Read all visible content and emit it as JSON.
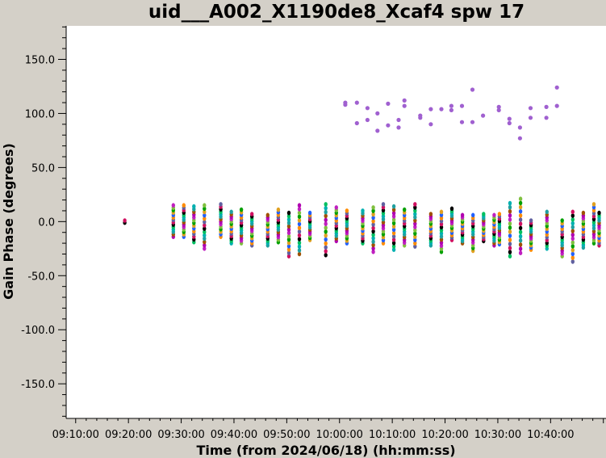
{
  "chart_data": {
    "type": "scatter",
    "title": "uid___A002_X1190de8_Xcaf4 spw 17",
    "xlabel": "Time (from 2024/06/18) (hh:mm:ss)",
    "ylabel": "Gain Phase (degrees)",
    "x_unit": "minutes after 09:00:00",
    "xlim": [
      8.2,
      110.5
    ],
    "ylim": [
      -182,
      181
    ],
    "x_ticks": [
      "09:10:00",
      "09:20:00",
      "09:30:00",
      "09:40:00",
      "09:50:00",
      "10:00:00",
      "10:10:00",
      "10:20:00",
      "10:30:00",
      "10:40:00"
    ],
    "y_ticks": [
      "150.0",
      "100.0",
      "50.0",
      "0.0",
      "-50.0",
      "-100.0",
      "-150.0"
    ],
    "grid": false,
    "legend": "none",
    "series_colors": [
      "#000000",
      "#ff8c00",
      "#00a000",
      "#b000b0",
      "#00b0b0",
      "#d01060",
      "#2060ff",
      "#80c040",
      "#a05000",
      "#00c060",
      "#6060a0",
      "#e0a020",
      "#c020c0",
      "#20a0a0"
    ],
    "outlier_color": "#a060d0",
    "scans": [
      {
        "t": 19.3,
        "lo": -1,
        "hi": 1,
        "n": 2
      },
      {
        "t": 28.5,
        "lo": -14,
        "hi": 15,
        "n": 14
      },
      {
        "t": 30.5,
        "lo": -14,
        "hi": 15,
        "n": 14
      },
      {
        "t": 32.4,
        "lo": -19,
        "hi": 14,
        "n": 14
      },
      {
        "t": 34.4,
        "lo": -25,
        "hi": 15,
        "n": 14
      },
      {
        "t": 37.5,
        "lo": -14,
        "hi": 16,
        "n": 14
      },
      {
        "t": 39.5,
        "lo": -20,
        "hi": 9,
        "n": 14
      },
      {
        "t": 41.4,
        "lo": -20,
        "hi": 11,
        "n": 14
      },
      {
        "t": 43.4,
        "lo": -22,
        "hi": 7,
        "n": 14
      },
      {
        "t": 46.4,
        "lo": -22,
        "hi": 6,
        "n": 14
      },
      {
        "t": 48.4,
        "lo": -19,
        "hi": 11,
        "n": 14
      },
      {
        "t": 50.4,
        "lo": -32,
        "hi": 8,
        "n": 14
      },
      {
        "t": 52.4,
        "lo": -30,
        "hi": 15,
        "n": 14
      },
      {
        "t": 54.4,
        "lo": -17,
        "hi": 8,
        "n": 14
      },
      {
        "t": 57.4,
        "lo": -31,
        "hi": 16,
        "n": 14
      },
      {
        "t": 59.4,
        "lo": -18,
        "hi": 13,
        "n": 14
      },
      {
        "t": 61.4,
        "lo": -20,
        "hi": 10,
        "n": 14
      },
      {
        "t": 64.4,
        "lo": -20,
        "hi": 10,
        "n": 14
      },
      {
        "t": 66.4,
        "lo": -28,
        "hi": 13,
        "n": 14
      },
      {
        "t": 68.3,
        "lo": -20,
        "hi": 16,
        "n": 14
      },
      {
        "t": 70.3,
        "lo": -26,
        "hi": 14,
        "n": 14
      },
      {
        "t": 72.3,
        "lo": -22,
        "hi": 11,
        "n": 14
      },
      {
        "t": 74.3,
        "lo": -23,
        "hi": 16,
        "n": 14
      },
      {
        "t": 77.3,
        "lo": -22,
        "hi": 7,
        "n": 14
      },
      {
        "t": 79.3,
        "lo": -28,
        "hi": 9,
        "n": 14
      },
      {
        "t": 81.3,
        "lo": -17,
        "hi": 12,
        "n": 14
      },
      {
        "t": 83.3,
        "lo": -20,
        "hi": 6,
        "n": 14
      },
      {
        "t": 85.3,
        "lo": -27,
        "hi": 6,
        "n": 14
      },
      {
        "t": 87.3,
        "lo": -18,
        "hi": 7,
        "n": 14
      },
      {
        "t": 89.3,
        "lo": -22,
        "hi": 6,
        "n": 14
      },
      {
        "t": 90.3,
        "lo": -21,
        "hi": 7,
        "n": 14
      },
      {
        "t": 92.3,
        "lo": -32,
        "hi": 17,
        "n": 14
      },
      {
        "t": 94.3,
        "lo": -29,
        "hi": 21,
        "n": 14
      },
      {
        "t": 96.3,
        "lo": -26,
        "hi": 1,
        "n": 14
      },
      {
        "t": 99.3,
        "lo": -25,
        "hi": 9,
        "n": 14
      },
      {
        "t": 102.2,
        "lo": -32,
        "hi": 1,
        "n": 14
      },
      {
        "t": 104.2,
        "lo": -37,
        "hi": 9,
        "n": 14
      },
      {
        "t": 106.2,
        "lo": -24,
        "hi": 8,
        "n": 14
      },
      {
        "t": 108.2,
        "lo": -20,
        "hi": 16,
        "n": 14
      },
      {
        "t": 109.2,
        "lo": -22,
        "hi": 8,
        "n": 14
      }
    ],
    "outliers": [
      {
        "t": 61.1,
        "v": 110
      },
      {
        "t": 61.1,
        "v": 108
      },
      {
        "t": 63.3,
        "v": 110
      },
      {
        "t": 63.3,
        "v": 91
      },
      {
        "t": 65.3,
        "v": 105
      },
      {
        "t": 65.3,
        "v": 94
      },
      {
        "t": 67.2,
        "v": 100
      },
      {
        "t": 67.2,
        "v": 84
      },
      {
        "t": 69.2,
        "v": 109
      },
      {
        "t": 69.2,
        "v": 89
      },
      {
        "t": 71.2,
        "v": 94
      },
      {
        "t": 71.2,
        "v": 87
      },
      {
        "t": 72.3,
        "v": 112
      },
      {
        "t": 72.3,
        "v": 107
      },
      {
        "t": 75.3,
        "v": 98
      },
      {
        "t": 75.3,
        "v": 96
      },
      {
        "t": 77.3,
        "v": 104
      },
      {
        "t": 77.3,
        "v": 90
      },
      {
        "t": 79.3,
        "v": 104
      },
      {
        "t": 81.2,
        "v": 107
      },
      {
        "t": 81.2,
        "v": 103
      },
      {
        "t": 83.2,
        "v": 107
      },
      {
        "t": 83.2,
        "v": 92
      },
      {
        "t": 85.2,
        "v": 122
      },
      {
        "t": 85.2,
        "v": 92
      },
      {
        "t": 87.2,
        "v": 98
      },
      {
        "t": 90.2,
        "v": 106
      },
      {
        "t": 90.2,
        "v": 103
      },
      {
        "t": 92.2,
        "v": 95
      },
      {
        "t": 92.2,
        "v": 91
      },
      {
        "t": 94.2,
        "v": 87
      },
      {
        "t": 94.2,
        "v": 77
      },
      {
        "t": 96.2,
        "v": 105
      },
      {
        "t": 96.2,
        "v": 96
      },
      {
        "t": 99.2,
        "v": 106
      },
      {
        "t": 99.2,
        "v": 96
      },
      {
        "t": 101.2,
        "v": 124
      },
      {
        "t": 101.2,
        "v": 107
      }
    ]
  }
}
